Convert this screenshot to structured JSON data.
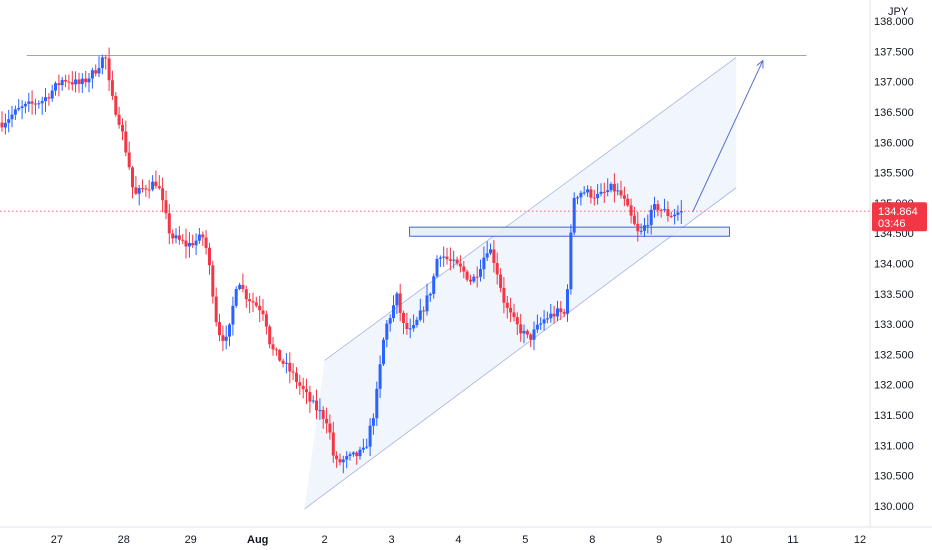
{
  "chart_data": {
    "type": "candlestick",
    "currency": "JPY",
    "ylim": [
      129.9,
      138.15
    ],
    "y_ticks": [
      "130.000",
      "130.500",
      "131.000",
      "131.500",
      "132.000",
      "132.500",
      "133.000",
      "133.500",
      "134.000",
      "134.500",
      "135.000",
      "135.500",
      "136.000",
      "136.500",
      "137.000",
      "137.500",
      "138.000"
    ],
    "x_ticks": [
      {
        "label": "27",
        "pos": 0.0
      },
      {
        "label": "28",
        "pos": 1.0
      },
      {
        "label": "29",
        "pos": 2.0
      },
      {
        "label": "Aug",
        "pos": 3.0,
        "bold": true
      },
      {
        "label": "2",
        "pos": 4.0
      },
      {
        "label": "3",
        "pos": 5.0
      },
      {
        "label": "4",
        "pos": 6.0
      },
      {
        "label": "5",
        "pos": 7.0
      },
      {
        "label": "8",
        "pos": 8.0
      },
      {
        "label": "9",
        "pos": 9.0
      },
      {
        "label": "10",
        "pos": 10.0
      },
      {
        "label": "11",
        "pos": 11.0
      },
      {
        "label": "12",
        "pos": 12.0
      }
    ],
    "x_range": [
      -0.85,
      12.15
    ],
    "last_price": 134.864,
    "countdown": "03:46",
    "colors": {
      "up": "#2962ff",
      "down": "#f23645",
      "channel_line": "#6d83d6",
      "channel_fill": "#eef3fb",
      "resistance_line": "#7a86b6",
      "zone_fill": "#e7eefc",
      "zone_border": "#2f55c9",
      "arrow": "#5a6fd0",
      "price_line": "#f23645",
      "price_tag": "#f23645",
      "axis_text": "#131722",
      "axis_line": "#e0e3eb"
    },
    "waypoints": [
      [
        -0.85,
        136.3
      ],
      [
        -0.55,
        136.55
      ],
      [
        -0.2,
        136.7
      ],
      [
        0.1,
        137.05
      ],
      [
        0.35,
        136.95
      ],
      [
        0.55,
        137.15
      ],
      [
        0.72,
        137.45
      ],
      [
        0.8,
        136.8
      ],
      [
        0.95,
        136.3
      ],
      [
        1.1,
        135.5
      ],
      [
        1.15,
        135.1
      ],
      [
        1.3,
        135.25
      ],
      [
        1.5,
        135.35
      ],
      [
        1.62,
        134.8
      ],
      [
        1.7,
        134.45
      ],
      [
        1.95,
        134.3
      ],
      [
        2.2,
        134.45
      ],
      [
        2.3,
        133.8
      ],
      [
        2.4,
        132.9
      ],
      [
        2.55,
        132.7
      ],
      [
        2.7,
        133.8
      ],
      [
        2.8,
        133.5
      ],
      [
        3.0,
        133.3
      ],
      [
        3.1,
        133.2
      ],
      [
        3.2,
        132.6
      ],
      [
        3.5,
        132.2
      ],
      [
        3.8,
        131.7
      ],
      [
        4.05,
        131.4
      ],
      [
        4.15,
        130.7
      ],
      [
        4.4,
        130.8
      ],
      [
        4.6,
        130.9
      ],
      [
        4.75,
        131.6
      ],
      [
        4.9,
        132.9
      ],
      [
        5.1,
        133.5
      ],
      [
        5.15,
        133.0
      ],
      [
        5.3,
        132.85
      ],
      [
        5.45,
        133.2
      ],
      [
        5.6,
        133.6
      ],
      [
        5.7,
        134.2
      ],
      [
        5.85,
        134.05
      ],
      [
        6.05,
        133.9
      ],
      [
        6.2,
        133.7
      ],
      [
        6.3,
        133.9
      ],
      [
        6.45,
        134.3
      ],
      [
        6.55,
        134.0
      ],
      [
        6.7,
        133.3
      ],
      [
        6.85,
        133.0
      ],
      [
        7.05,
        132.75
      ],
      [
        7.3,
        133.1
      ],
      [
        7.5,
        133.2
      ],
      [
        7.6,
        133.15
      ],
      [
        7.72,
        135.1
      ],
      [
        7.85,
        135.2
      ],
      [
        8.1,
        135.1
      ],
      [
        8.3,
        135.25
      ],
      [
        8.45,
        135.1
      ],
      [
        8.6,
        134.7
      ],
      [
        8.7,
        134.45
      ],
      [
        8.85,
        134.75
      ],
      [
        8.95,
        134.95
      ],
      [
        9.15,
        134.8
      ],
      [
        9.35,
        134.864
      ]
    ],
    "resistance": {
      "x1": -0.45,
      "x2": 11.2,
      "y": 137.43
    },
    "channel": {
      "upper": [
        [
          4.0,
          132.4
        ],
        [
          10.15,
          137.4
        ]
      ],
      "lower": [
        [
          3.7,
          129.95
        ],
        [
          10.15,
          135.25
        ]
      ]
    },
    "zone": {
      "x1": 5.27,
      "x2": 10.05,
      "y_top": 134.6,
      "y_bottom": 134.45
    },
    "projection_arrow": {
      "from": [
        9.5,
        134.85
      ],
      "to": [
        10.55,
        137.35
      ]
    }
  }
}
